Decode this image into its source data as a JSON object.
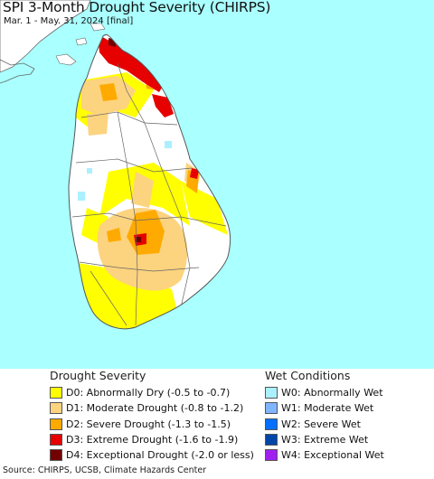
{
  "map": {
    "title": "SPI 3-Month Drought Severity (CHIRPS)",
    "subtitle": "Mar. 1 - May. 31, 2024 [final]",
    "colors": {
      "ocean": "#aaffff",
      "land": "#ffffff",
      "border": "#666666"
    }
  },
  "legend": {
    "drought_title": "Drought Severity",
    "drought_items": [
      {
        "label": "D0: Abnormally Dry (-0.5 to -0.7)",
        "color": "#ffff00"
      },
      {
        "label": "D1: Moderate Drought (-0.8 to -1.2)",
        "color": "#fcd37f"
      },
      {
        "label": "D2: Severe Drought (-1.3 to -1.5)",
        "color": "#ffaa00"
      },
      {
        "label": "D3: Extreme Drought (-1.6 to -1.9)",
        "color": "#e60000"
      },
      {
        "label": "D4: Exceptional Drought (-2.0 or less)",
        "color": "#730000"
      }
    ],
    "wet_title": "Wet Conditions",
    "wet_items": [
      {
        "label": "W0: Abnormally Wet",
        "color": "#aaf0ff"
      },
      {
        "label": "W1: Moderate Wet",
        "color": "#7fb6ff"
      },
      {
        "label": "W2: Severe Wet",
        "color": "#0070ff"
      },
      {
        "label": "W3: Extreme Wet",
        "color": "#0046a8"
      },
      {
        "label": "W4: Exceptional Wet",
        "color": "#a020f0"
      }
    ]
  },
  "footer": {
    "source": "Source: CHIRPS, UCSB, Climate Hazards Center"
  }
}
